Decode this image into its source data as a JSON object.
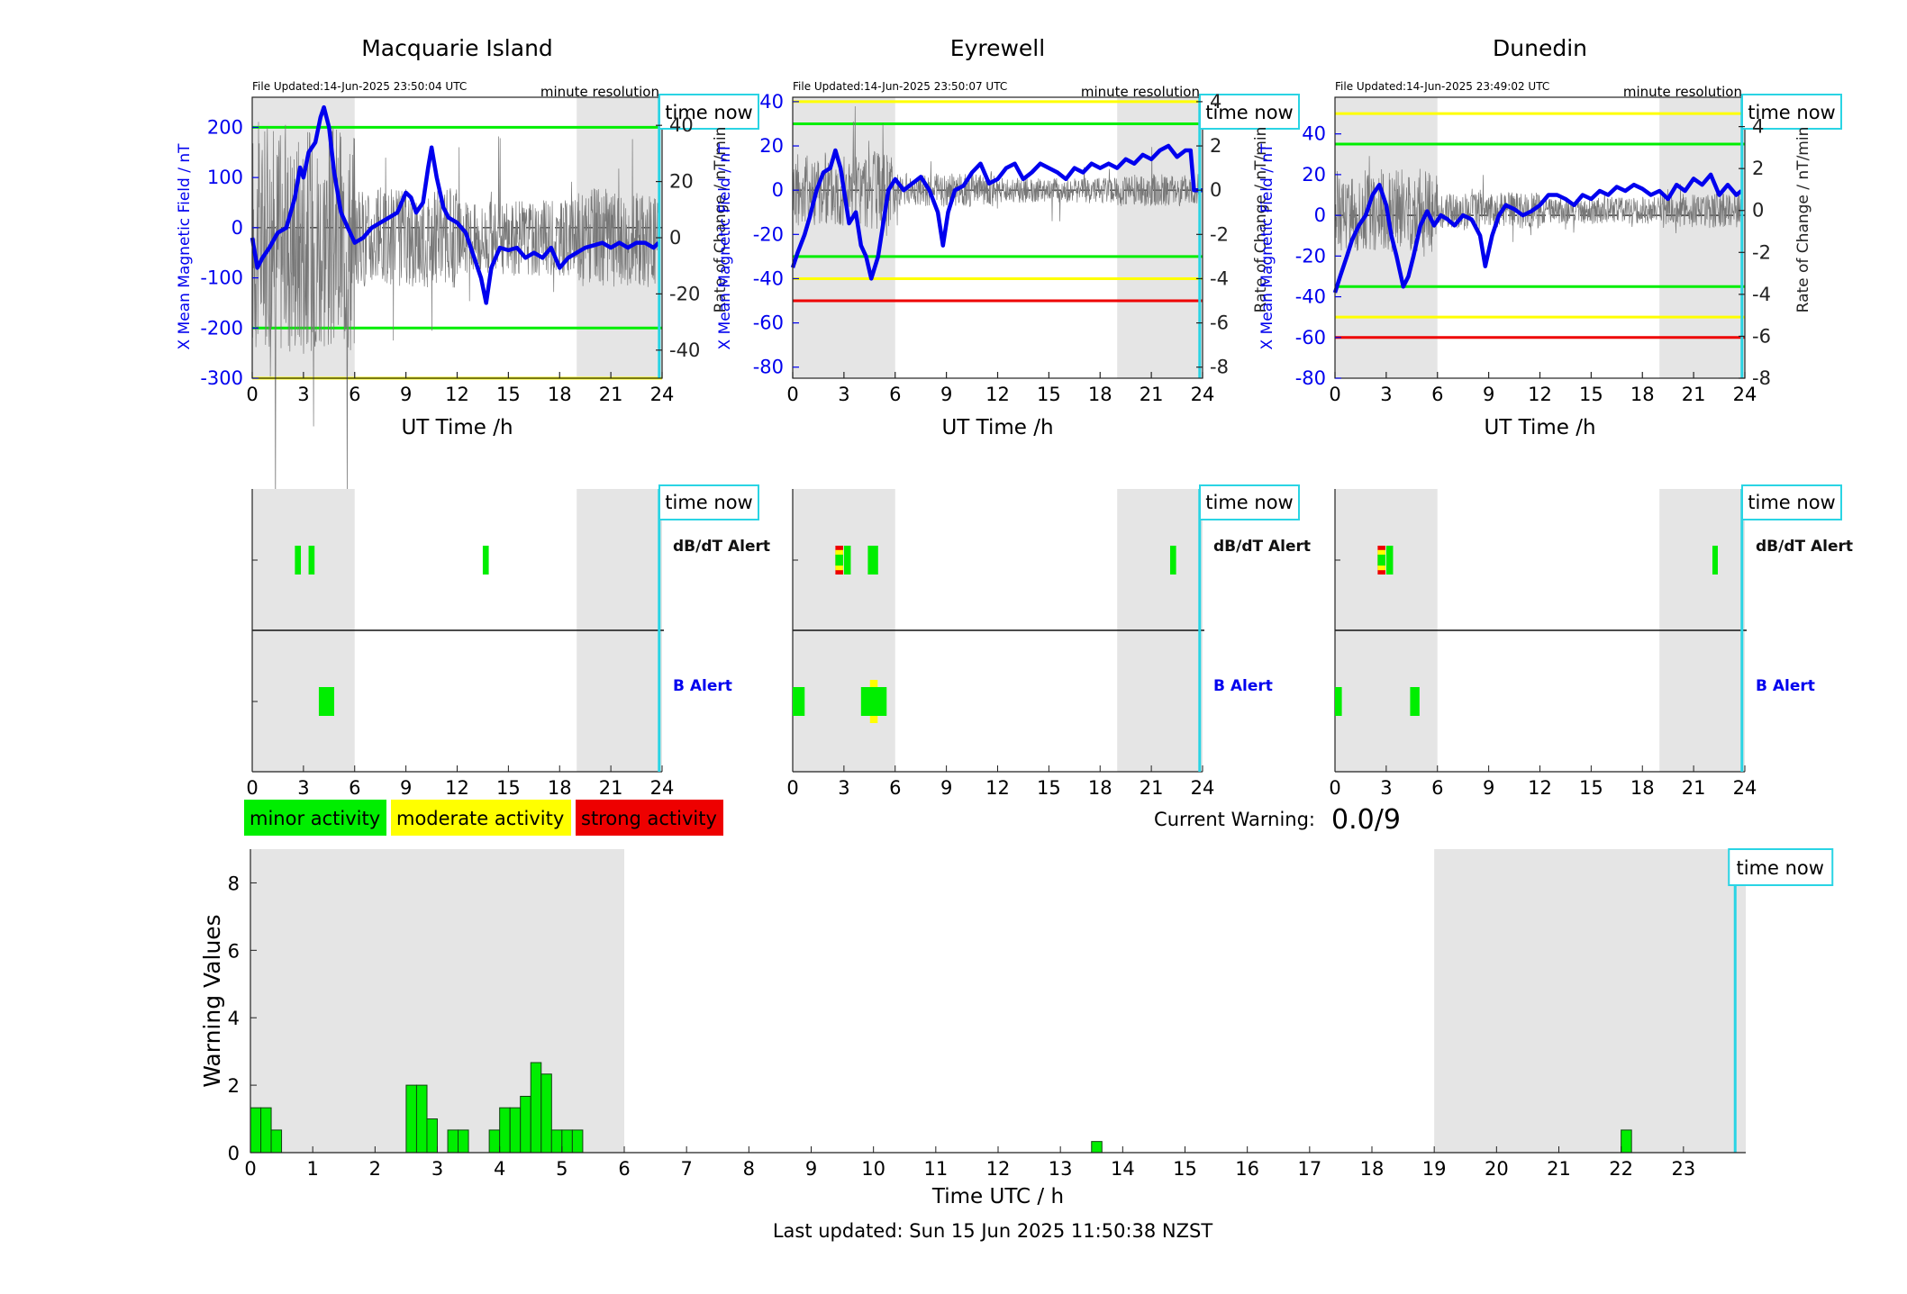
{
  "colors": {
    "shade": "#e5e5e5",
    "bline": "#0000ee",
    "cyan": "#2ad4e4",
    "green": "#00ee00",
    "yellow": "#ffff00",
    "red": "#ee0000",
    "noise": "#777777",
    "axis_blue": "#0000ee",
    "bar_edge": "#114411"
  },
  "stations": [
    {
      "title": "Macquarie Island",
      "file_updated": "File Updated:14-Jun-2025 23:50:04 UTC",
      "resolution": "minute resolution",
      "time_now": "time now",
      "time_now_h": 23.83,
      "night_bands": [
        [
          0,
          6
        ],
        [
          19,
          24
        ]
      ],
      "ylabel_left": "X Mean Magnetic Field / nT",
      "ylabel_right": "Rate of Change / nT/min",
      "xlabel": "UT Time /h",
      "ylim": [
        -300,
        260
      ],
      "yticks": [
        -300,
        -200,
        -100,
        0,
        100,
        200
      ],
      "y2lim": [
        -50,
        50
      ],
      "y2ticks": [
        -40,
        -20,
        0,
        20,
        40
      ],
      "xticks": [
        0,
        3,
        6,
        9,
        12,
        15,
        18,
        21,
        24
      ],
      "thresholds": [
        {
          "value": 200,
          "color": "green"
        },
        {
          "value": -200,
          "color": "green"
        },
        {
          "value": -300,
          "color": "yellow"
        }
      ],
      "x_mean": [
        [
          0,
          -20
        ],
        [
          0.3,
          -80
        ],
        [
          0.6,
          -60
        ],
        [
          1,
          -40
        ],
        [
          1.5,
          -10
        ],
        [
          2,
          0
        ],
        [
          2.5,
          60
        ],
        [
          2.8,
          120
        ],
        [
          3,
          100
        ],
        [
          3.3,
          150
        ],
        [
          3.7,
          170
        ],
        [
          4,
          220
        ],
        [
          4.2,
          240
        ],
        [
          4.5,
          200
        ],
        [
          4.8,
          110
        ],
        [
          5.2,
          30
        ],
        [
          5.6,
          0
        ],
        [
          6,
          -30
        ],
        [
          6.5,
          -20
        ],
        [
          7,
          0
        ],
        [
          7.5,
          10
        ],
        [
          8,
          20
        ],
        [
          8.5,
          30
        ],
        [
          9,
          70
        ],
        [
          9.3,
          60
        ],
        [
          9.6,
          30
        ],
        [
          10,
          50
        ],
        [
          10.3,
          120
        ],
        [
          10.5,
          160
        ],
        [
          10.8,
          100
        ],
        [
          11.2,
          40
        ],
        [
          11.5,
          20
        ],
        [
          12,
          10
        ],
        [
          12.5,
          -10
        ],
        [
          13,
          -60
        ],
        [
          13.4,
          -100
        ],
        [
          13.7,
          -150
        ],
        [
          14,
          -80
        ],
        [
          14.5,
          -40
        ],
        [
          15,
          -45
        ],
        [
          15.5,
          -40
        ],
        [
          16,
          -60
        ],
        [
          16.5,
          -50
        ],
        [
          17,
          -60
        ],
        [
          17.5,
          -40
        ],
        [
          18,
          -80
        ],
        [
          18.5,
          -60
        ],
        [
          19,
          -50
        ],
        [
          19.5,
          -40
        ],
        [
          20,
          -35
        ],
        [
          20.5,
          -30
        ],
        [
          21,
          -40
        ],
        [
          21.5,
          -30
        ],
        [
          22,
          -40
        ],
        [
          22.5,
          -30
        ],
        [
          23,
          -30
        ],
        [
          23.5,
          -40
        ],
        [
          23.8,
          -30
        ]
      ],
      "noise_amp": 18,
      "dbdt_alert": [
        {
          "start": 2.5,
          "end": 2.85,
          "level": "minor"
        },
        {
          "start": 3.3,
          "end": 3.65,
          "level": "minor"
        },
        {
          "start": 13.5,
          "end": 13.85,
          "level": "minor"
        }
      ],
      "b_alert": [
        {
          "start": 3.9,
          "end": 4.8,
          "level": "minor"
        }
      ]
    },
    {
      "title": "Eyrewell",
      "file_updated": "File Updated:14-Jun-2025 23:50:07 UTC",
      "resolution": "minute resolution",
      "time_now": "time now",
      "time_now_h": 23.83,
      "night_bands": [
        [
          0,
          6
        ],
        [
          19,
          24
        ]
      ],
      "ylabel_left": "X Mean Magnetic Field / nT",
      "ylabel_right": "Rate of Change / nT/min",
      "xlabel": "UT Time /h",
      "ylim": [
        -85,
        42
      ],
      "yticks": [
        -80,
        -60,
        -40,
        -20,
        0,
        20,
        40
      ],
      "y2lim": [
        -8.5,
        4.2
      ],
      "y2ticks": [
        -8,
        -6,
        -4,
        -2,
        0,
        2,
        4
      ],
      "xticks": [
        0,
        3,
        6,
        9,
        12,
        15,
        18,
        21,
        24
      ],
      "thresholds": [
        {
          "value": 40,
          "color": "yellow"
        },
        {
          "value": 30,
          "color": "green"
        },
        {
          "value": -30,
          "color": "green"
        },
        {
          "value": -40,
          "color": "yellow"
        },
        {
          "value": -50,
          "color": "red"
        }
      ],
      "x_mean": [
        [
          0,
          -35
        ],
        [
          0.3,
          -28
        ],
        [
          0.7,
          -20
        ],
        [
          1,
          -12
        ],
        [
          1.4,
          0
        ],
        [
          1.8,
          8
        ],
        [
          2.2,
          10
        ],
        [
          2.5,
          18
        ],
        [
          2.8,
          10
        ],
        [
          3,
          0
        ],
        [
          3.3,
          -15
        ],
        [
          3.7,
          -10
        ],
        [
          4,
          -25
        ],
        [
          4.3,
          -30
        ],
        [
          4.6,
          -40
        ],
        [
          5,
          -30
        ],
        [
          5.3,
          -15
        ],
        [
          5.6,
          0
        ],
        [
          6,
          5
        ],
        [
          6.5,
          0
        ],
        [
          7,
          3
        ],
        [
          7.5,
          6
        ],
        [
          8,
          0
        ],
        [
          8.5,
          -10
        ],
        [
          8.8,
          -25
        ],
        [
          9.1,
          -10
        ],
        [
          9.5,
          0
        ],
        [
          10,
          2
        ],
        [
          10.5,
          8
        ],
        [
          11,
          12
        ],
        [
          11.5,
          3
        ],
        [
          12,
          5
        ],
        [
          12.5,
          10
        ],
        [
          13,
          12
        ],
        [
          13.5,
          5
        ],
        [
          14,
          8
        ],
        [
          14.5,
          12
        ],
        [
          15,
          10
        ],
        [
          15.5,
          8
        ],
        [
          16,
          5
        ],
        [
          16.5,
          10
        ],
        [
          17,
          8
        ],
        [
          17.5,
          12
        ],
        [
          18,
          10
        ],
        [
          18.5,
          12
        ],
        [
          19,
          10
        ],
        [
          19.5,
          14
        ],
        [
          20,
          12
        ],
        [
          20.5,
          16
        ],
        [
          21,
          14
        ],
        [
          21.5,
          18
        ],
        [
          22,
          20
        ],
        [
          22.5,
          15
        ],
        [
          23,
          18
        ],
        [
          23.3,
          18
        ],
        [
          23.5,
          0
        ],
        [
          24,
          0
        ]
      ],
      "noise_amp": 9,
      "dbdt_alert": [
        {
          "start": 2.5,
          "end": 2.95,
          "level": "strong"
        },
        {
          "start": 3.0,
          "end": 3.4,
          "level": "minor"
        },
        {
          "start": 4.4,
          "end": 5.0,
          "level": "minor"
        },
        {
          "start": 22.1,
          "end": 22.45,
          "level": "minor"
        }
      ],
      "b_alert": [
        {
          "start": 0,
          "end": 0.7,
          "level": "minor"
        },
        {
          "start": 4.0,
          "end": 5.5,
          "level": "moderate"
        }
      ]
    },
    {
      "title": "Dunedin",
      "file_updated": "File Updated:14-Jun-2025 23:49:02 UTC",
      "resolution": "minute resolution",
      "time_now": "time now",
      "time_now_h": 23.83,
      "night_bands": [
        [
          0,
          6
        ],
        [
          19,
          24
        ]
      ],
      "ylabel_left": "X Mean Magnetic Field / nT",
      "ylabel_right": "Rate of Change / nT/min",
      "xlabel": "UT Time /h",
      "ylim": [
        -80,
        58
      ],
      "yticks": [
        -80,
        -60,
        -40,
        -20,
        0,
        20,
        40
      ],
      "y2lim": [
        -8,
        5.4
      ],
      "y2ticks": [
        -8,
        -6,
        -4,
        -2,
        0,
        2,
        4
      ],
      "xticks": [
        0,
        3,
        6,
        9,
        12,
        15,
        18,
        21,
        24
      ],
      "thresholds": [
        {
          "value": 50,
          "color": "yellow"
        },
        {
          "value": 35,
          "color": "green"
        },
        {
          "value": -35,
          "color": "green"
        },
        {
          "value": -50,
          "color": "yellow"
        },
        {
          "value": -60,
          "color": "red"
        }
      ],
      "x_mean": [
        [
          0,
          -38
        ],
        [
          0.3,
          -30
        ],
        [
          0.7,
          -20
        ],
        [
          1,
          -12
        ],
        [
          1.4,
          -5
        ],
        [
          1.8,
          0
        ],
        [
          2.2,
          10
        ],
        [
          2.6,
          15
        ],
        [
          3,
          5
        ],
        [
          3.3,
          -10
        ],
        [
          3.6,
          -20
        ],
        [
          4,
          -35
        ],
        [
          4.3,
          -30
        ],
        [
          4.6,
          -20
        ],
        [
          5,
          -5
        ],
        [
          5.4,
          2
        ],
        [
          5.8,
          -5
        ],
        [
          6.2,
          0
        ],
        [
          6.6,
          -2
        ],
        [
          7,
          -5
        ],
        [
          7.5,
          0
        ],
        [
          8,
          -2
        ],
        [
          8.5,
          -10
        ],
        [
          8.8,
          -25
        ],
        [
          9.2,
          -10
        ],
        [
          9.6,
          0
        ],
        [
          10,
          5
        ],
        [
          10.5,
          3
        ],
        [
          11,
          0
        ],
        [
          11.5,
          2
        ],
        [
          12,
          5
        ],
        [
          12.5,
          10
        ],
        [
          13,
          10
        ],
        [
          13.5,
          8
        ],
        [
          14,
          5
        ],
        [
          14.5,
          10
        ],
        [
          15,
          8
        ],
        [
          15.5,
          12
        ],
        [
          16,
          10
        ],
        [
          16.5,
          14
        ],
        [
          17,
          12
        ],
        [
          17.5,
          15
        ],
        [
          18,
          13
        ],
        [
          18.5,
          10
        ],
        [
          19,
          12
        ],
        [
          19.5,
          8
        ],
        [
          20,
          15
        ],
        [
          20.5,
          12
        ],
        [
          21,
          18
        ],
        [
          21.5,
          15
        ],
        [
          22,
          20
        ],
        [
          22.5,
          10
        ],
        [
          23,
          15
        ],
        [
          23.5,
          10
        ],
        [
          23.8,
          12
        ]
      ],
      "noise_amp": 8,
      "dbdt_alert": [
        {
          "start": 2.5,
          "end": 2.95,
          "level": "strong"
        },
        {
          "start": 3.0,
          "end": 3.4,
          "level": "minor"
        },
        {
          "start": 22.1,
          "end": 22.4,
          "level": "minor"
        }
      ],
      "b_alert": [
        {
          "start": 0,
          "end": 0.4,
          "level": "minor"
        },
        {
          "start": 4.4,
          "end": 4.95,
          "level": "minor"
        }
      ]
    }
  ],
  "alert_row_labels": {
    "dbdt": "dB/dT Alert",
    "b": "B Alert"
  },
  "legend": [
    {
      "label": "minor activity",
      "color": "green"
    },
    {
      "label": "moderate activity",
      "color": "yellow"
    },
    {
      "label": "strong activity",
      "color": "red"
    }
  ],
  "current_warning": {
    "label": "Current Warning:",
    "value": "0.0/9"
  },
  "chart_data": {
    "type": "bar",
    "ylabel": "Warning Values",
    "xlabel": "Time UTC / h",
    "ylim": [
      0,
      9
    ],
    "yticks": [
      0,
      2,
      4,
      6,
      8
    ],
    "xlim": [
      0,
      24
    ],
    "xticks": [
      0,
      1,
      2,
      3,
      4,
      5,
      6,
      7,
      8,
      9,
      10,
      11,
      12,
      13,
      14,
      15,
      16,
      17,
      18,
      19,
      20,
      21,
      22,
      23
    ],
    "bar_width_h": 0.1667,
    "night_bands": [
      [
        0,
        6
      ],
      [
        19,
        24
      ]
    ],
    "time_now": "time now",
    "time_now_h": 23.83,
    "x": [
      0.0,
      0.167,
      0.333,
      2.5,
      2.667,
      2.833,
      3.167,
      3.333,
      3.833,
      4.0,
      4.167,
      4.333,
      4.5,
      4.667,
      4.833,
      5.0,
      5.167,
      13.5,
      22.0
    ],
    "values": [
      1.33,
      1.33,
      0.67,
      2.0,
      2.0,
      1.0,
      0.67,
      0.67,
      0.67,
      1.33,
      1.33,
      1.67,
      2.67,
      2.33,
      0.67,
      0.67,
      0.67,
      0.33,
      0.67
    ]
  },
  "footer": "Last updated: Sun 15 Jun 2025 11:50:38 NZST"
}
